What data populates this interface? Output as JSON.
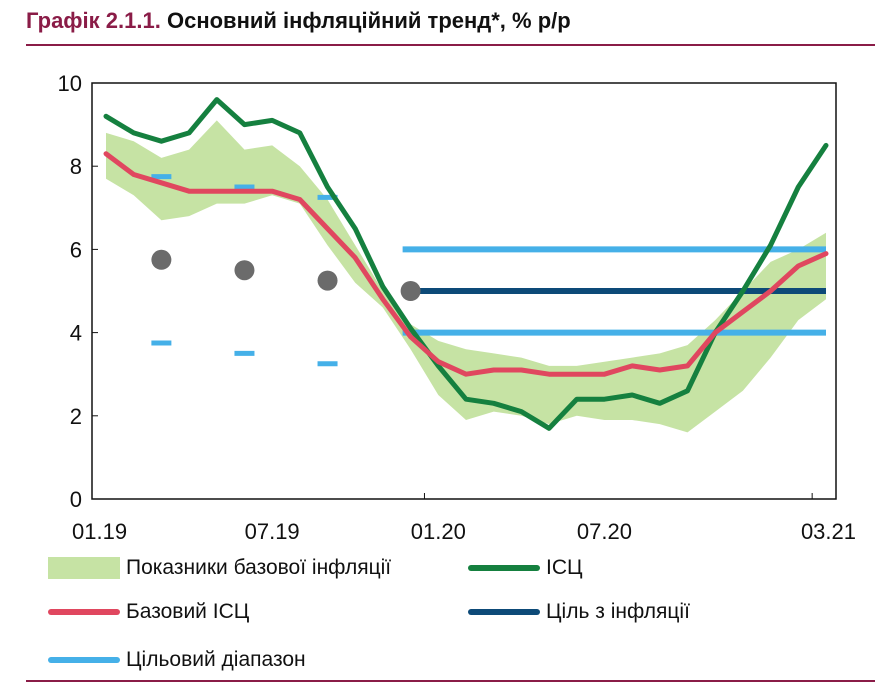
{
  "header": {
    "number": "Графік 2.1.1.",
    "text": "Основний інфляційний тренд*, % р/р"
  },
  "colors": {
    "brand": "#8a1c47",
    "band": "#c6e3a4",
    "cpi": "#15803f",
    "core": "#e0475f",
    "target": "#0d4a78",
    "range": "#45b0e8",
    "dots": "#6b6b6b"
  },
  "chart_data": {
    "type": "line",
    "ylim": [
      0,
      10
    ],
    "y_ticks": [
      "0",
      "2",
      "4",
      "6",
      "8",
      "10"
    ],
    "x_tick_labels": [
      "01.19",
      "07.19",
      "01.20",
      "07.20",
      "03.21"
    ],
    "grid": false,
    "legend_position": "bottom",
    "months": [
      "01.19",
      "02.19",
      "03.19",
      "04.19",
      "05.19",
      "06.19",
      "07.19",
      "08.19",
      "09.19",
      "10.19",
      "11.19",
      "12.19",
      "01.20",
      "02.20",
      "03.20",
      "04.20",
      "05.20",
      "06.20",
      "07.20",
      "08.20",
      "09.20",
      "10.20",
      "11.20",
      "12.20",
      "01.21",
      "02.21",
      "03.21"
    ],
    "series": [
      {
        "name": "ІСЦ",
        "values": [
          9.2,
          8.8,
          8.6,
          8.8,
          9.6,
          9.0,
          9.1,
          8.8,
          7.5,
          6.5,
          5.1,
          4.1,
          3.2,
          2.4,
          2.3,
          2.1,
          1.7,
          2.4,
          2.4,
          2.5,
          2.3,
          2.6,
          4.0,
          5.0,
          6.1,
          7.5,
          8.5
        ]
      },
      {
        "name": "Базовий ІСЦ",
        "values": [
          8.3,
          7.8,
          7.6,
          7.4,
          7.4,
          7.4,
          7.4,
          7.2,
          6.5,
          5.8,
          4.8,
          3.9,
          3.3,
          3.0,
          3.1,
          3.1,
          3.0,
          3.0,
          3.0,
          3.2,
          3.1,
          3.2,
          4.0,
          4.5,
          5.0,
          5.6,
          5.9
        ]
      }
    ],
    "band": {
      "name": "Показники базової інфляції",
      "upper": [
        8.8,
        8.6,
        8.2,
        8.4,
        9.1,
        8.4,
        8.5,
        8.0,
        7.2,
        6.1,
        5.0,
        4.2,
        3.8,
        3.6,
        3.5,
        3.4,
        3.2,
        3.2,
        3.3,
        3.4,
        3.5,
        3.7,
        4.3,
        5.0,
        5.7,
        6.0,
        6.4
      ]
    },
    "band_lower": [
      7.7,
      7.3,
      6.7,
      6.8,
      7.1,
      7.1,
      7.3,
      7.1,
      6.1,
      5.2,
      4.6,
      3.6,
      2.5,
      1.9,
      2.1,
      2.0,
      1.8,
      2.0,
      1.9,
      1.9,
      1.8,
      1.6,
      2.1,
      2.6,
      3.4,
      4.3,
      4.8
    ],
    "target_line": {
      "name": "Ціль з інфляції",
      "value": 5,
      "from_month": "12.19",
      "to_month": "03.21"
    },
    "target_range": {
      "name": "Цільовий діапазон",
      "upper": 6,
      "lower": 4,
      "from_month": "12.19",
      "to_month": "03.21"
    },
    "historical_targets": [
      {
        "month": "03.19",
        "target": 5.75,
        "upper": 7.75,
        "lower": 3.75
      },
      {
        "month": "06.19",
        "target": 5.5,
        "upper": 7.5,
        "lower": 3.5
      },
      {
        "month": "09.19",
        "target": 5.25,
        "upper": 7.25,
        "lower": 3.25
      },
      {
        "month": "12.19",
        "target": 5.0,
        "upper": 6.0,
        "lower": 4.0
      }
    ]
  },
  "legend": {
    "band": "Показники базової інфляції",
    "cpi": "ІСЦ",
    "core": "Базовий ІСЦ",
    "target": "Ціль з інфляції",
    "range": "Цільовий діапазон"
  }
}
